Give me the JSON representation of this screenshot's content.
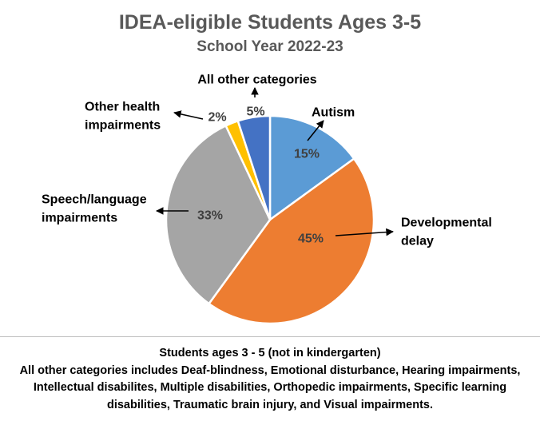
{
  "chart_data": {
    "type": "pie",
    "title": "IDEA-eligible Students Ages 3-5",
    "subtitle": "School Year 2022-23",
    "slices": [
      {
        "name": "Autism",
        "value": 15,
        "label": "15%",
        "color": "#5B9BD5"
      },
      {
        "name": "Developmental delay",
        "value": 45,
        "label": "45%",
        "color": "#ED7D31"
      },
      {
        "name": "Speech/language impairments",
        "value": 33,
        "label": "33%",
        "color": "#A5A5A5"
      },
      {
        "name": "Other health impairments",
        "value": 2,
        "label": "2%",
        "color": "#FFC000"
      },
      {
        "name": "All other categories",
        "value": 5,
        "label": "5%",
        "color": "#4472C4"
      }
    ],
    "category_labels": {
      "autism": "Autism",
      "developmental_delay": [
        "Developmental",
        "delay"
      ],
      "speech_language": [
        "Speech/language",
        "impairments"
      ],
      "other_health": [
        "Other health",
        "impairments"
      ],
      "all_other": "All other categories"
    },
    "legend": "none"
  },
  "notes": {
    "line1": "Students ages 3 - 5 (not in kindergarten)",
    "line2": "All other categories includes Deaf-blindness, Emotional disturbance, Hearing impairments,",
    "line3": "Intellectual disabilites, Multiple disabilities, Orthopedic impairments, Specific learning",
    "line4": "disabilities, Traumatic brain injury, and Visual impairments."
  }
}
